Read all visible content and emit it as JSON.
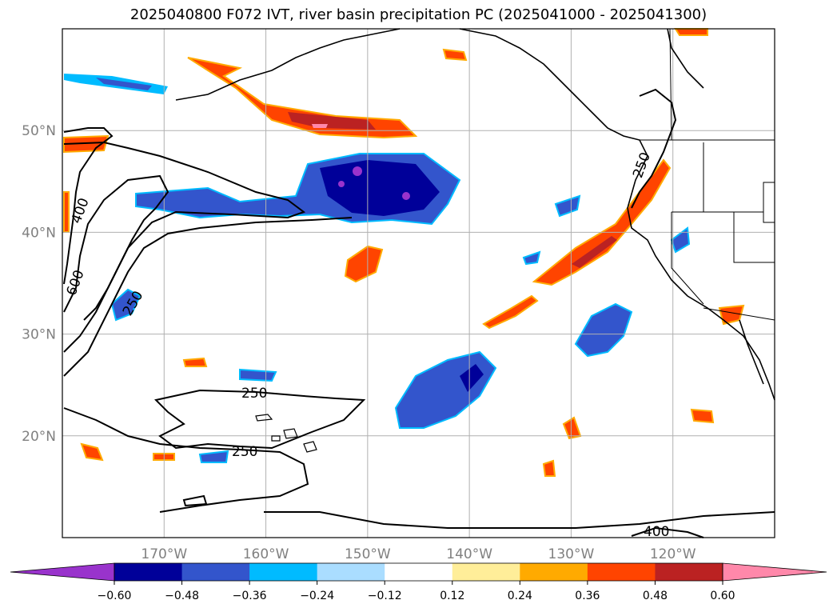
{
  "title": "2025040800 F072 IVT, river basin precipitation PC (2025041000 - 2025041300)",
  "map": {
    "extent": {
      "lon": [
        -180,
        -110
      ],
      "lat": [
        10,
        60
      ]
    },
    "projection": "PlateCarree",
    "grid": true,
    "lat_ticks": [
      {
        "value": 50,
        "label": "50°N"
      },
      {
        "value": 40,
        "label": "40°N"
      },
      {
        "value": 30,
        "label": "30°N"
      },
      {
        "value": 20,
        "label": "20°N"
      }
    ],
    "lon_ticks": [
      {
        "value": -170,
        "label": "170°W"
      },
      {
        "value": -160,
        "label": "160°W"
      },
      {
        "value": -150,
        "label": "150°W"
      },
      {
        "value": -140,
        "label": "140°W"
      },
      {
        "value": -130,
        "label": "130°W"
      },
      {
        "value": -120,
        "label": "120°W"
      }
    ],
    "ivt_contour_labels": [
      "400",
      "600",
      "250",
      "250",
      "250",
      "400",
      "250"
    ]
  },
  "colorbar": {
    "extend": "both",
    "under_color": "#9933cc",
    "over_color": "#ff88aa",
    "segments": [
      {
        "from": -0.6,
        "to": -0.48,
        "color": "#000099"
      },
      {
        "from": -0.48,
        "to": -0.36,
        "color": "#3355cc"
      },
      {
        "from": -0.36,
        "to": -0.24,
        "color": "#00bbff"
      },
      {
        "from": -0.24,
        "to": -0.12,
        "color": "#aaddff"
      },
      {
        "from": -0.12,
        "to": 0.12,
        "color": "#ffffff"
      },
      {
        "from": 0.12,
        "to": 0.24,
        "color": "#ffee99"
      },
      {
        "from": 0.24,
        "to": 0.36,
        "color": "#ffaa00"
      },
      {
        "from": 0.36,
        "to": 0.48,
        "color": "#ff4400"
      },
      {
        "from": 0.48,
        "to": 0.6,
        "color": "#bb2222"
      }
    ],
    "tick_labels": [
      "−0.60",
      "−0.48",
      "−0.36",
      "−0.24",
      "−0.12",
      "0.12",
      "0.24",
      "0.36",
      "0.48",
      "0.60"
    ]
  }
}
